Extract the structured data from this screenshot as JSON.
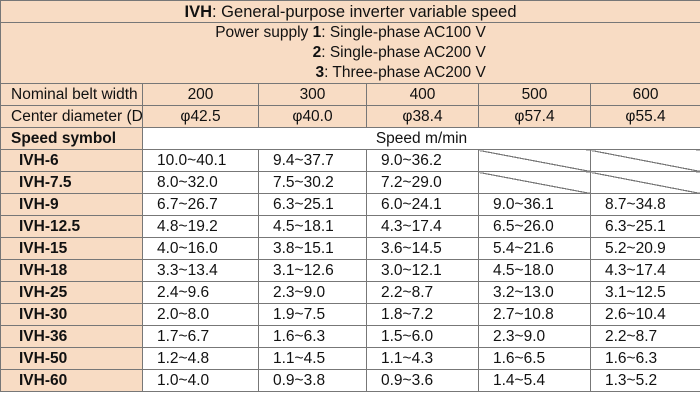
{
  "title": {
    "code": "IVH",
    "text": ": General-purpose inverter variable speed"
  },
  "power_supply": {
    "label": "Power supply ",
    "options": [
      {
        "num": "1",
        "text": ": Single-phase AC100 V"
      },
      {
        "num": "2",
        "text": ": Single-phase AC200 V"
      },
      {
        "num": "3",
        "text": ": Three-phase AC200 V"
      }
    ]
  },
  "belt": {
    "label": "Nominal belt width",
    "widths": [
      "200",
      "300",
      "400",
      "500",
      "600"
    ]
  },
  "diameter": {
    "label": "Center diameter (D)",
    "values": [
      "φ42.5",
      "φ40.0",
      "φ38.4",
      "φ57.4",
      "φ55.4"
    ]
  },
  "speed_header": {
    "symbol_label": "Speed symbol",
    "unit_label": "Speed m/min"
  },
  "rows": [
    {
      "symbol": "IVH-6",
      "values": [
        "10.0~40.1",
        "9.4~37.7",
        "9.0~36.2",
        "",
        ""
      ]
    },
    {
      "symbol": "IVH-7.5",
      "values": [
        "8.0~32.0",
        "7.5~30.2",
        "7.2~29.0",
        "",
        ""
      ]
    },
    {
      "symbol": "IVH-9",
      "values": [
        "6.7~26.7",
        "6.3~25.1",
        "6.0~24.1",
        "9.0~36.1",
        "8.7~34.8"
      ]
    },
    {
      "symbol": "IVH-12.5",
      "values": [
        "4.8~19.2",
        "4.5~18.1",
        "4.3~17.4",
        "6.5~26.0",
        "6.3~25.1"
      ]
    },
    {
      "symbol": "IVH-15",
      "values": [
        "4.0~16.0",
        "3.8~15.1",
        "3.6~14.5",
        "5.4~21.6",
        "5.2~20.9"
      ]
    },
    {
      "symbol": "IVH-18",
      "values": [
        "3.3~13.4",
        "3.1~12.6",
        "3.0~12.1",
        "4.5~18.0",
        "4.3~17.4"
      ]
    },
    {
      "symbol": "IVH-25",
      "values": [
        "2.4~9.6",
        "2.3~9.0",
        "2.2~8.7",
        "3.2~13.0",
        "3.1~12.5"
      ]
    },
    {
      "symbol": "IVH-30",
      "values": [
        "2.0~8.0",
        "1.9~7.5",
        "1.8~7.2",
        "2.7~10.8",
        "2.6~10.4"
      ]
    },
    {
      "symbol": "IVH-36",
      "values": [
        "1.7~6.7",
        "1.6~6.3",
        "1.5~6.0",
        "2.3~9.0",
        "2.2~8.7"
      ]
    },
    {
      "symbol": "IVH-50",
      "values": [
        "1.2~4.8",
        "1.1~4.5",
        "1.1~4.3",
        "1.6~6.5",
        "1.6~6.3"
      ]
    },
    {
      "symbol": "IVH-60",
      "values": [
        "1.0~4.0",
        "0.9~3.8",
        "0.9~3.6",
        "1.4~5.4",
        "1.3~5.2"
      ]
    }
  ],
  "colors": {
    "header_fill": "#f8dcc4",
    "border": "#777777"
  }
}
